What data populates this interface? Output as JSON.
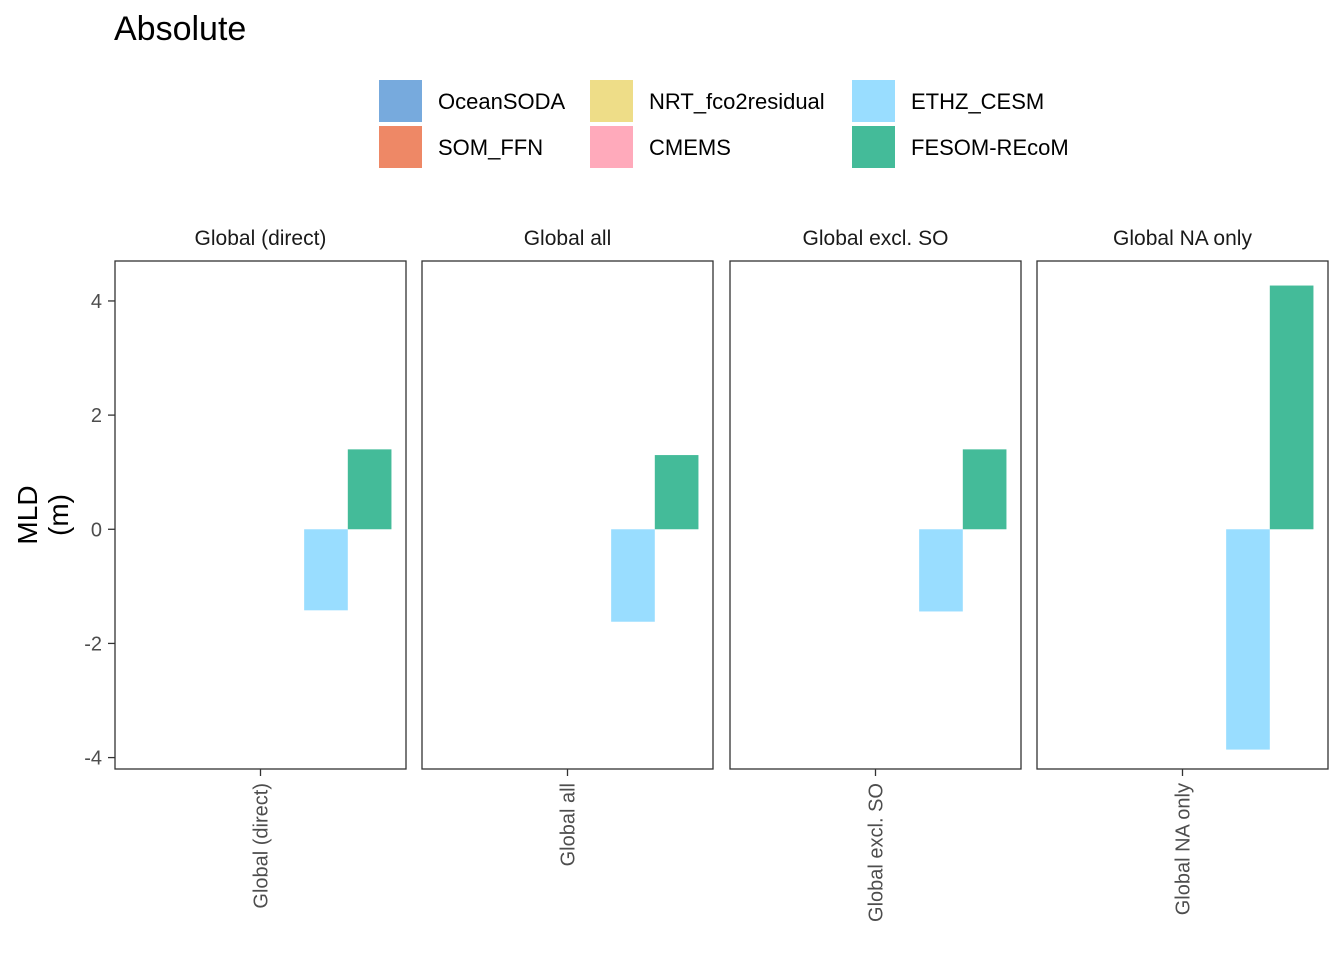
{
  "chart_data": {
    "type": "bar",
    "title": "Absolute",
    "ylabel_line1": "MLD",
    "ylabel_line2": "(m)",
    "ylim": [
      -4.2,
      4.7
    ],
    "yticks": [
      -4,
      -2,
      0,
      2,
      4
    ],
    "ytick_labels": [
      "-4",
      "-2",
      "0",
      "2",
      "4"
    ],
    "grid": false,
    "legend_position": "top",
    "legend": [
      {
        "name": "OceanSODA",
        "color": "#77AADD"
      },
      {
        "name": "SOM_FFN",
        "color": "#EE8866"
      },
      {
        "name": "NRT_fco2residual",
        "color": "#EEDD88"
      },
      {
        "name": "CMEMS",
        "color": "#FFAABB"
      },
      {
        "name": "ETHZ_CESM",
        "color": "#99DDFF"
      },
      {
        "name": "FESOM-REcoM",
        "color": "#44BB99"
      }
    ],
    "facets": [
      {
        "label": "Global (direct)",
        "xtick": "Global (direct)",
        "bars": [
          {
            "series": "ETHZ_CESM",
            "value": -1.42
          },
          {
            "series": "FESOM-REcoM",
            "value": 1.4
          }
        ]
      },
      {
        "label": "Global all",
        "xtick": "Global all",
        "bars": [
          {
            "series": "ETHZ_CESM",
            "value": -1.62
          },
          {
            "series": "FESOM-REcoM",
            "value": 1.3
          }
        ]
      },
      {
        "label": "Global excl. SO",
        "xtick": "Global excl. SO",
        "bars": [
          {
            "series": "ETHZ_CESM",
            "value": -1.44
          },
          {
            "series": "FESOM-REcoM",
            "value": 1.4
          }
        ]
      },
      {
        "label": "Global NA only",
        "xtick": "Global NA only",
        "bars": [
          {
            "series": "ETHZ_CESM",
            "value": -3.86
          },
          {
            "series": "FESOM-REcoM",
            "value": 4.27
          }
        ]
      }
    ]
  }
}
